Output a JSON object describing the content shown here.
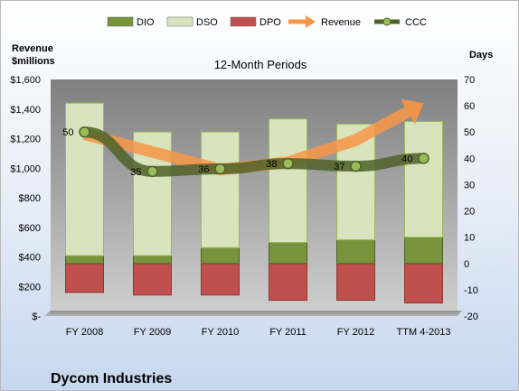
{
  "chart_data": {
    "type": "bar",
    "title": "12-Month Periods",
    "company": "Dycom Industries",
    "categories": [
      "FY 2008",
      "FY 2009",
      "FY 2010",
      "FY 2011",
      "FY 2012",
      "TTM 4-2013"
    ],
    "left_axis": {
      "label_line1": "Revenue",
      "label_line2": "$millions",
      "range": [
        0,
        1600
      ],
      "ticks": [
        "$-",
        "$200",
        "$400",
        "$600",
        "$800",
        "$1,000",
        "$1,200",
        "$1,400",
        "$1,600"
      ]
    },
    "right_axis": {
      "label": "Days",
      "range": [
        -20,
        70
      ],
      "ticks": [
        "-20",
        "-10",
        "0",
        "10",
        "20",
        "30",
        "40",
        "50",
        "60",
        "70"
      ]
    },
    "series": [
      {
        "name": "DIO",
        "type": "stacked-bar",
        "color": "#77933c",
        "values": [
          3,
          3,
          6,
          8,
          9,
          10
        ]
      },
      {
        "name": "DSO",
        "type": "stacked-bar",
        "color": "#d7e4bd",
        "values": [
          58,
          47,
          44,
          47,
          44,
          44
        ]
      },
      {
        "name": "DPO",
        "type": "negative-bar",
        "color": "#c0504d",
        "values": [
          11,
          12,
          12,
          14,
          14,
          15
        ]
      },
      {
        "name": "Revenue",
        "type": "arrow",
        "color": "#f79646",
        "values": [
          1230,
          1110,
          990,
          1040,
          1190,
          1440
        ]
      },
      {
        "name": "CCC",
        "type": "line",
        "color": "#4f6228",
        "values": [
          50,
          35,
          36,
          38,
          37,
          40
        ],
        "labels": [
          "50",
          "35",
          "36",
          "38",
          "37",
          "40"
        ]
      }
    ],
    "grid": false,
    "legend_position": "top"
  }
}
